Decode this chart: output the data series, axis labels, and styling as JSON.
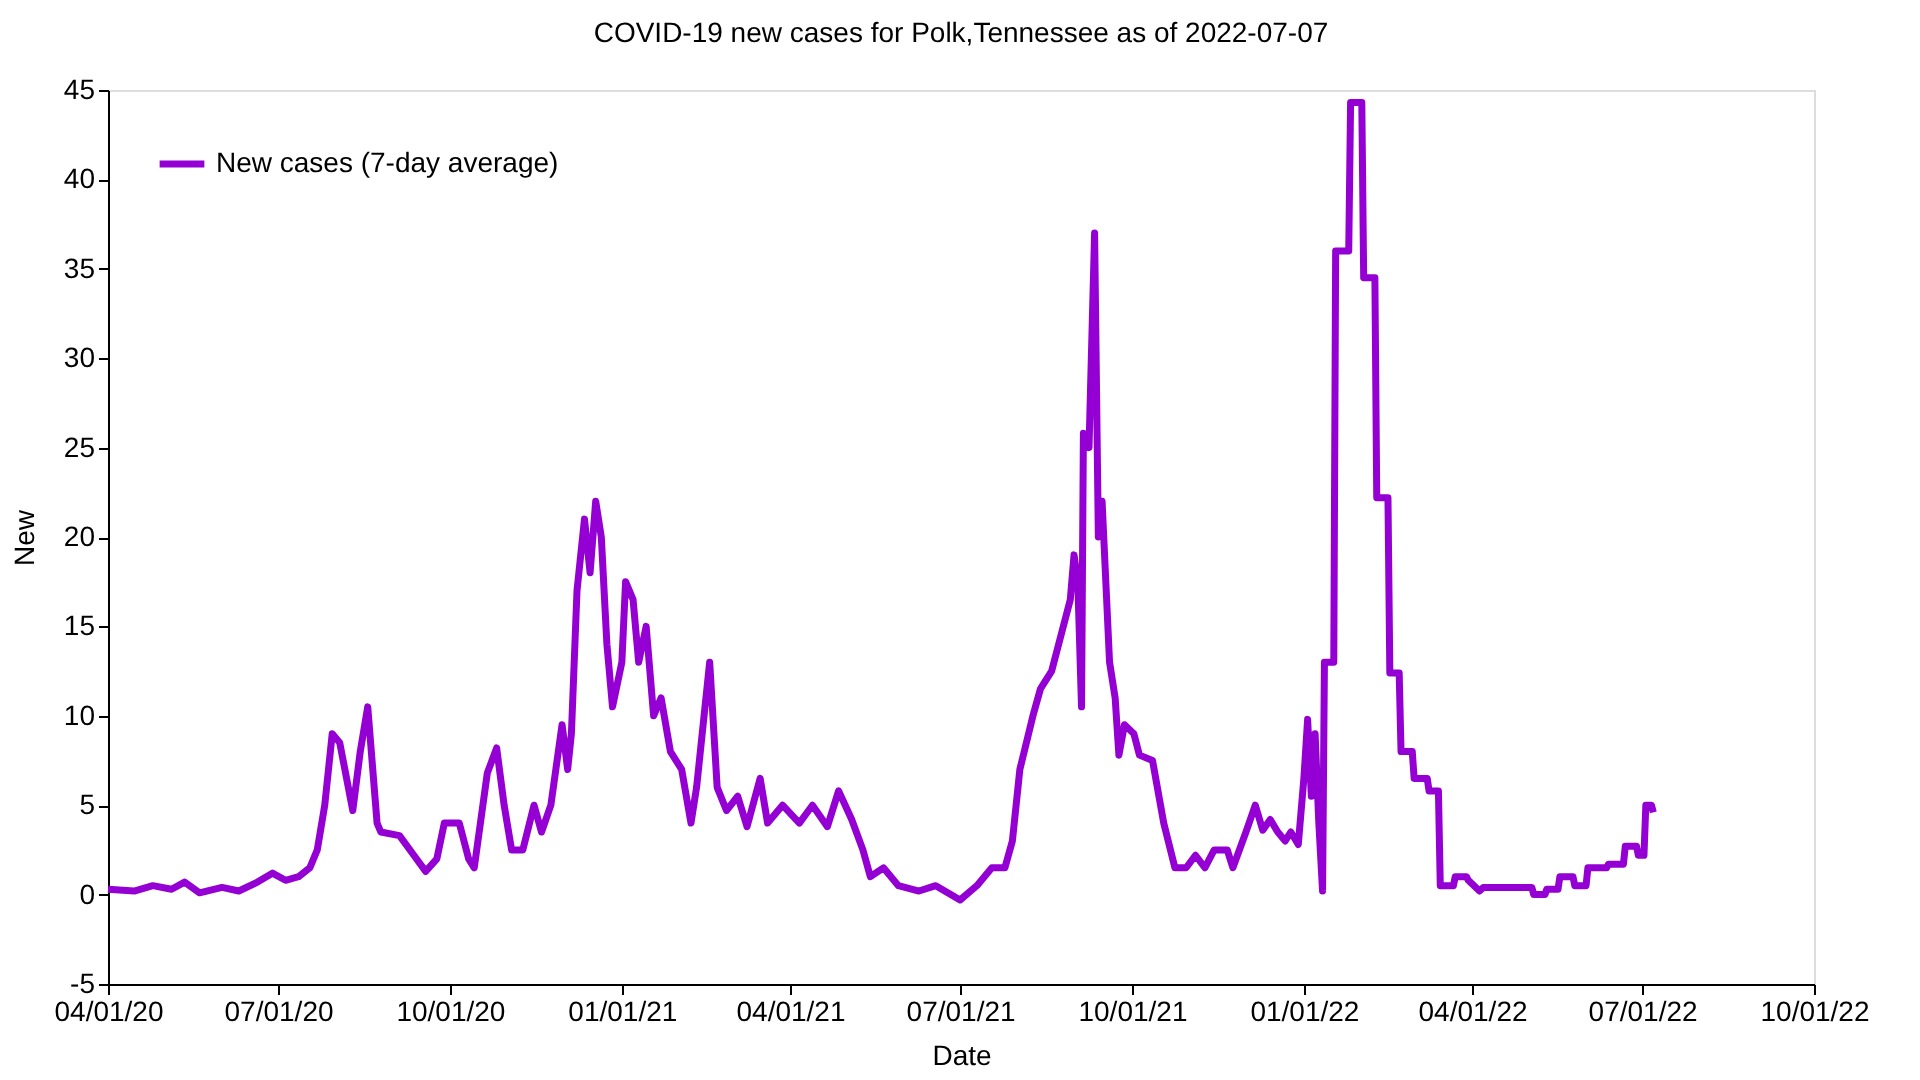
{
  "chart_data": {
    "type": "line",
    "title": "COVID-19 new cases for Polk,Tennessee as of 2022-07-07",
    "xlabel": "Date",
    "ylabel": "New",
    "xlim": [
      "2020-04-01",
      "2022-10-01"
    ],
    "ylim": [
      -5,
      45
    ],
    "yticks": [
      -5,
      0,
      5,
      10,
      15,
      20,
      25,
      30,
      35,
      40,
      45
    ],
    "xticks": [
      {
        "value": "2020-04-01",
        "label": "04/01/20"
      },
      {
        "value": "2020-07-01",
        "label": "07/01/20"
      },
      {
        "value": "2020-10-01",
        "label": "10/01/20"
      },
      {
        "value": "2021-01-01",
        "label": "01/01/21"
      },
      {
        "value": "2021-04-01",
        "label": "04/01/21"
      },
      {
        "value": "2021-07-01",
        "label": "07/01/21"
      },
      {
        "value": "2021-10-01",
        "label": "10/01/21"
      },
      {
        "value": "2022-01-01",
        "label": "01/01/22"
      },
      {
        "value": "2022-04-01",
        "label": "04/01/22"
      },
      {
        "value": "2022-07-01",
        "label": "07/01/22"
      },
      {
        "value": "2022-10-01",
        "label": "10/01/22"
      }
    ],
    "grid": false,
    "legend": "top left",
    "marker": "none",
    "line_style": "solid",
    "series": [
      {
        "name": "New cases (7-day average)",
        "color": "#9400d3",
        "x": [
          "2020-04-01",
          "2020-04-15",
          "2020-04-25",
          "2020-05-05",
          "2020-05-12",
          "2020-05-20",
          "2020-06-01",
          "2020-06-10",
          "2020-06-20",
          "2020-06-28",
          "2020-07-05",
          "2020-07-12",
          "2020-07-18",
          "2020-07-22",
          "2020-07-26",
          "2020-07-30",
          "2020-08-03",
          "2020-08-10",
          "2020-08-14",
          "2020-08-18",
          "2020-08-23",
          "2020-08-25",
          "2020-09-04",
          "2020-09-11",
          "2020-09-18",
          "2020-09-24",
          "2020-09-28",
          "2020-10-06",
          "2020-10-11",
          "2020-10-14",
          "2020-10-21",
          "2020-10-26",
          "2020-10-30",
          "2020-11-03",
          "2020-11-09",
          "2020-11-15",
          "2020-11-19",
          "2020-11-24",
          "2020-11-30",
          "2020-12-03",
          "2020-12-05",
          "2020-12-08",
          "2020-12-12",
          "2020-12-15",
          "2020-12-18",
          "2020-12-21",
          "2020-12-24",
          "2020-12-27",
          "2021-01-01",
          "2021-01-03",
          "2021-01-07",
          "2021-01-10",
          "2021-01-14",
          "2021-01-18",
          "2021-01-22",
          "2021-01-27",
          "2021-02-02",
          "2021-02-07",
          "2021-02-10",
          "2021-02-17",
          "2021-02-21",
          "2021-02-26",
          "2021-03-04",
          "2021-03-09",
          "2021-03-16",
          "2021-03-20",
          "2021-03-28",
          "2021-04-06",
          "2021-04-13",
          "2021-04-21",
          "2021-04-27",
          "2021-05-04",
          "2021-05-10",
          "2021-05-14",
          "2021-05-21",
          "2021-05-29",
          "2021-06-09",
          "2021-06-18",
          "2021-06-26",
          "2021-07-01",
          "2021-07-10",
          "2021-07-18",
          "2021-07-25",
          "2021-07-29",
          "2021-08-02",
          "2021-08-09",
          "2021-08-13",
          "2021-08-19",
          "2021-08-24",
          "2021-08-29",
          "2021-08-31",
          "2021-09-02",
          "2021-09-04",
          "2021-09-05",
          "2021-09-08",
          "2021-09-11",
          "2021-09-13",
          "2021-09-15",
          "2021-09-19",
          "2021-09-22",
          "2021-09-24",
          "2021-09-27",
          "2021-10-02",
          "2021-10-05",
          "2021-10-12",
          "2021-10-18",
          "2021-10-24",
          "2021-10-30",
          "2021-11-04",
          "2021-11-09",
          "2021-11-14",
          "2021-11-21",
          "2021-11-24",
          "2021-12-01",
          "2021-12-06",
          "2021-12-10",
          "2021-12-14",
          "2021-12-18",
          "2021-12-22",
          "2021-12-25",
          "2021-12-29",
          "2022-01-01",
          "2022-01-03",
          "2022-01-05",
          "2022-01-07",
          "2022-01-09",
          "2022-01-11",
          "2022-01-12",
          "2022-01-17",
          "2022-01-18",
          "2022-01-25",
          "2022-01-26",
          "2022-02-01",
          "2022-02-02",
          "2022-02-08",
          "2022-02-09",
          "2022-02-15",
          "2022-02-16",
          "2022-02-21",
          "2022-02-22",
          "2022-02-28",
          "2022-03-01",
          "2022-03-08",
          "2022-03-09",
          "2022-03-14",
          "2022-03-15",
          "2022-03-22",
          "2022-03-23",
          "2022-03-29",
          "2022-03-30",
          "2022-04-05",
          "2022-04-07",
          "2022-05-03",
          "2022-05-04",
          "2022-05-10",
          "2022-05-11",
          "2022-05-17",
          "2022-05-18",
          "2022-05-25",
          "2022-05-26",
          "2022-06-01",
          "2022-06-02",
          "2022-06-12",
          "2022-06-13",
          "2022-06-21",
          "2022-06-22",
          "2022-06-28",
          "2022-06-29",
          "2022-07-02",
          "2022-07-03",
          "2022-07-06",
          "2022-07-07"
        ],
        "values": [
          0.3,
          0.2,
          0.5,
          0.3,
          0.7,
          0.1,
          0.4,
          0.2,
          0.7,
          1.2,
          0.8,
          1,
          1.5,
          2.5,
          5,
          9,
          8.5,
          4.7,
          8,
          10.5,
          4,
          3.5,
          3.3,
          2.3,
          1.3,
          2,
          4,
          4,
          2,
          1.5,
          6.8,
          8.2,
          5,
          2.5,
          2.5,
          5,
          3.5,
          5,
          9.5,
          7,
          9,
          17,
          21,
          18,
          22,
          20,
          14,
          10.5,
          13,
          17.5,
          16.5,
          13,
          15,
          10,
          11,
          8,
          7,
          4,
          6,
          13,
          6,
          4.7,
          5.5,
          3.8,
          6.5,
          4,
          5,
          4,
          5,
          3.8,
          5.8,
          4.2,
          2.5,
          1,
          1.5,
          0.5,
          0.2,
          0.5,
          0,
          -0.3,
          0.5,
          1.5,
          1.5,
          3,
          7,
          10,
          11.5,
          12.5,
          14.5,
          16.5,
          19,
          17.5,
          10.5,
          25.8,
          25,
          37,
          20,
          22,
          13,
          11,
          7.8,
          9.5,
          9,
          7.8,
          7.5,
          4,
          1.5,
          1.5,
          2.2,
          1.5,
          2.5,
          2.5,
          1.5,
          3.5,
          5,
          3.6,
          4.2,
          3.5,
          3,
          3.5,
          2.8,
          6.5,
          9.8,
          5.5,
          9,
          4,
          0.2,
          13,
          13,
          36,
          36,
          44.3,
          44.3,
          34.5,
          34.5,
          22.2,
          22.2,
          12.4,
          12.4,
          8,
          8,
          6.5,
          6.5,
          5.8,
          5.8,
          0.5,
          0.5,
          1,
          1,
          0.8,
          0.2,
          0.4,
          0.4,
          0,
          0,
          0.3,
          0.3,
          1,
          1,
          0.5,
          0.5,
          1.5,
          1.5,
          1.7,
          1.7,
          2.7,
          2.7,
          2.2,
          2.2,
          5,
          5,
          4.6
        ]
      }
    ]
  }
}
